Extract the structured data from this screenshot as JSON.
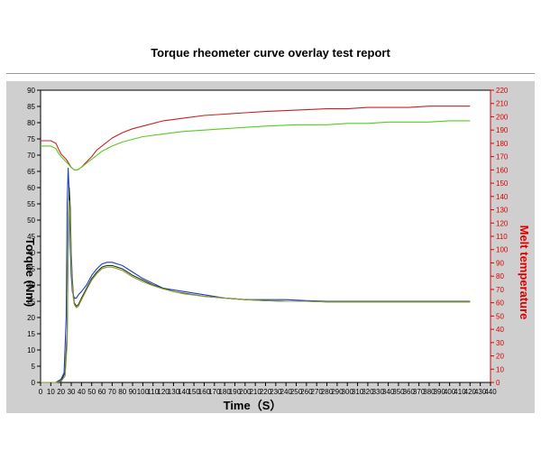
{
  "report": {
    "title": "Torque rheometer curve overlay test report"
  },
  "chart_data": {
    "type": "line",
    "title": "Torque rheometer curve overlay test report",
    "xlabel": "Time（S）",
    "ylabel_left": "Torque (Nm)",
    "ylabel_right": "Melt temperature",
    "xlim": [
      0,
      440
    ],
    "ylim_left": [
      0,
      90
    ],
    "ylim_right": [
      0,
      220
    ],
    "x_ticks": [
      0,
      10,
      20,
      30,
      40,
      50,
      60,
      70,
      80,
      90,
      100,
      110,
      120,
      130,
      140,
      150,
      160,
      170,
      180,
      190,
      200,
      210,
      220,
      230,
      240,
      250,
      260,
      270,
      280,
      290,
      300,
      310,
      320,
      330,
      340,
      350,
      360,
      370,
      380,
      390,
      400,
      410,
      420,
      430,
      440
    ],
    "y_left_ticks": [
      0,
      5,
      10,
      15,
      20,
      25,
      30,
      35,
      40,
      45,
      50,
      55,
      60,
      65,
      70,
      75,
      80,
      85,
      90
    ],
    "y_right_ticks": [
      0,
      10,
      20,
      30,
      40,
      50,
      60,
      70,
      80,
      90,
      100,
      110,
      120,
      130,
      140,
      150,
      160,
      170,
      180,
      190,
      200,
      210,
      220
    ],
    "grid": false,
    "colors": {
      "temp_red": "#cc2020",
      "temp_green": "#55cc22",
      "torque_blue": "#1a3cc8",
      "torque_dark": "#1e3a1e",
      "torque_olive": "#8a9a30",
      "right_axis": "#dd0000",
      "plot_bg": "#ffffff",
      "frame_bg": "#cfcfcf"
    },
    "series": [
      {
        "axis": "right",
        "color": "#cc2020",
        "x": [
          0,
          10,
          15,
          18,
          20,
          25,
          30,
          33,
          36,
          40,
          45,
          50,
          55,
          60,
          70,
          80,
          90,
          100,
          120,
          140,
          160,
          180,
          200,
          220,
          250,
          280,
          300,
          320,
          340,
          360,
          380,
          400,
          420
        ],
        "y": [
          182,
          182,
          180,
          175,
          172,
          168,
          162,
          160,
          160,
          162,
          166,
          170,
          175,
          178,
          184,
          188,
          191,
          193,
          197,
          199,
          201,
          202,
          203,
          204,
          205,
          206,
          206,
          207,
          207,
          207,
          208,
          208,
          208
        ]
      },
      {
        "axis": "right",
        "color": "#55cc22",
        "x": [
          0,
          10,
          15,
          18,
          20,
          25,
          30,
          33,
          36,
          40,
          45,
          50,
          55,
          60,
          70,
          80,
          90,
          100,
          120,
          140,
          160,
          180,
          200,
          220,
          250,
          280,
          300,
          320,
          340,
          360,
          380,
          400,
          420
        ],
        "y": [
          178,
          178,
          176,
          172,
          170,
          166,
          162,
          160,
          160,
          162,
          165,
          168,
          171,
          174,
          178,
          181,
          183,
          185,
          187,
          189,
          190,
          191,
          192,
          193,
          194,
          194,
          195,
          195,
          196,
          196,
          196,
          197,
          197
        ]
      },
      {
        "axis": "left",
        "color": "#1a3cc8",
        "x": [
          0,
          15,
          20,
          23,
          25,
          26,
          27,
          28,
          29,
          30,
          31,
          33,
          35,
          37,
          40,
          45,
          50,
          55,
          60,
          65,
          70,
          75,
          80,
          90,
          100,
          110,
          120,
          130,
          140,
          160,
          180,
          200,
          220,
          240,
          260,
          280,
          300,
          320,
          340,
          360,
          380,
          400,
          420
        ],
        "y": [
          0,
          0,
          1,
          3,
          20,
          55,
          66,
          58,
          42,
          33,
          28,
          26,
          26,
          27,
          28,
          30,
          33,
          35,
          36.5,
          37,
          37,
          36.5,
          36,
          34,
          32,
          30.5,
          29,
          28.5,
          28,
          27,
          26,
          25.5,
          25.5,
          25.5,
          25.2,
          25,
          25,
          25,
          25,
          25,
          25,
          25,
          25
        ]
      },
      {
        "axis": "left",
        "color": "#1e3a1e",
        "x": [
          0,
          15,
          20,
          24,
          26,
          27,
          28,
          29,
          30,
          31,
          32,
          33,
          35,
          37,
          40,
          45,
          50,
          55,
          60,
          65,
          70,
          75,
          80,
          90,
          100,
          110,
          120,
          130,
          140,
          160,
          180,
          200,
          220,
          240,
          260,
          280,
          300,
          320,
          340,
          360,
          380,
          400,
          420
        ],
        "y": [
          0,
          0,
          0.5,
          3,
          15,
          45,
          60,
          54,
          40,
          32,
          27,
          24.5,
          23.5,
          24,
          26,
          29,
          32,
          34,
          35.5,
          36,
          36,
          35.5,
          35,
          33,
          31.5,
          30,
          29,
          28,
          27.5,
          26.5,
          26,
          25.5,
          25.2,
          25,
          25,
          24.8,
          24.8,
          24.8,
          24.8,
          24.8,
          24.8,
          24.8,
          24.8
        ]
      },
      {
        "axis": "left",
        "color": "#8a9a30",
        "x": [
          0,
          15,
          20,
          24,
          26,
          27,
          28,
          29,
          30,
          31,
          32,
          33,
          35,
          37,
          40,
          45,
          50,
          55,
          60,
          65,
          70,
          75,
          80,
          90,
          100,
          110,
          120,
          130,
          140,
          160,
          180,
          200,
          220,
          240,
          260,
          280,
          300,
          320,
          340,
          360,
          380,
          400,
          420
        ],
        "y": [
          0,
          0,
          0.3,
          2,
          12,
          40,
          56,
          50,
          38,
          30,
          26,
          24,
          23,
          23.5,
          25.5,
          28.5,
          31.5,
          33.5,
          35,
          35.5,
          35.5,
          35,
          34.5,
          32.5,
          31,
          29.8,
          28.8,
          28,
          27.3,
          26.5,
          26,
          25.5,
          25.2,
          25,
          25,
          24.8,
          24.8,
          24.8,
          24.8,
          24.8,
          24.8,
          24.8,
          24.8
        ]
      }
    ]
  }
}
